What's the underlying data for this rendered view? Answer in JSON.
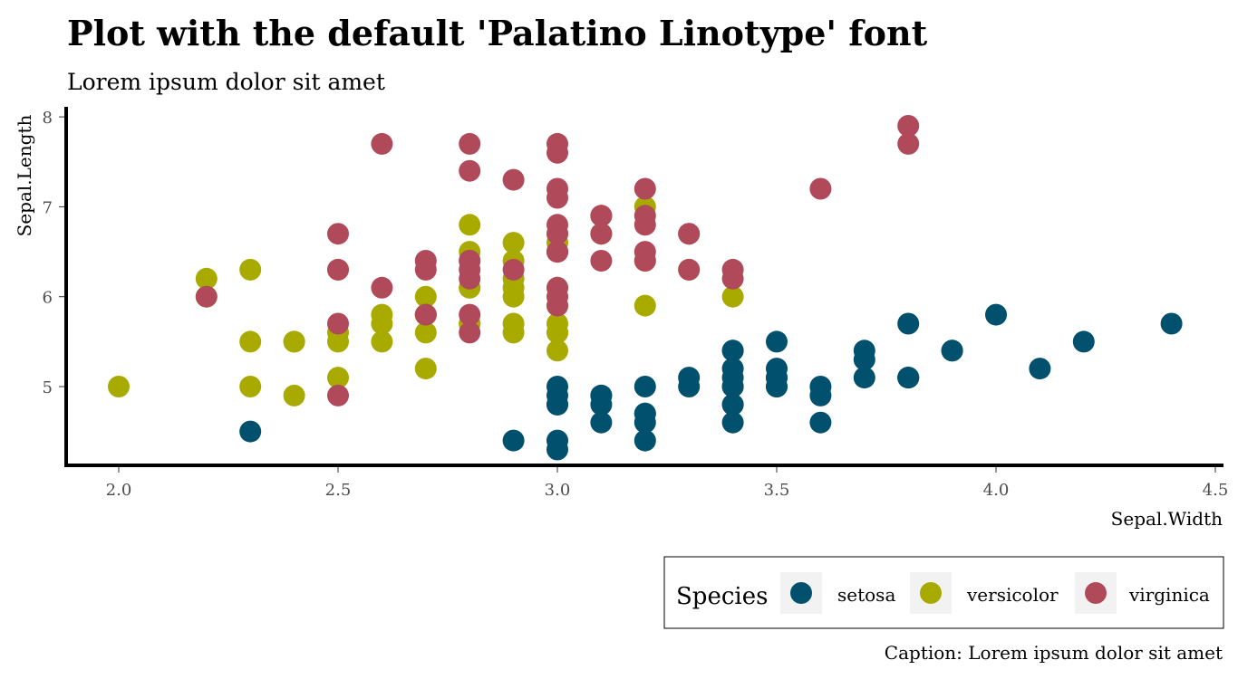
{
  "chart_data": {
    "type": "scatter",
    "title": "Plot with the default 'Palatino Linotype' font",
    "subtitle": "Lorem ipsum dolor sit amet",
    "caption": "Caption: Lorem ipsum dolor sit amet",
    "xlabel": "Sepal.Width",
    "ylabel": "Sepal.Length",
    "xlim": [
      1.88,
      4.5
    ],
    "ylim": [
      4.15,
      8.1
    ],
    "xticks": [
      2.0,
      2.5,
      3.0,
      3.5,
      4.0,
      4.5
    ],
    "xtick_labels": [
      "2.0",
      "2.5",
      "3.0",
      "3.5",
      "4.0",
      "4.5"
    ],
    "yticks": [
      5,
      6,
      7,
      8
    ],
    "ytick_labels": [
      "5",
      "6",
      "7",
      "8"
    ],
    "grid": false,
    "legend": {
      "title": "Species",
      "position": "bottom-right"
    },
    "series": [
      {
        "name": "setosa",
        "color": "#00506e",
        "points": [
          [
            3.5,
            5.1
          ],
          [
            3.0,
            4.9
          ],
          [
            3.2,
            4.7
          ],
          [
            3.1,
            4.6
          ],
          [
            3.6,
            5.0
          ],
          [
            3.9,
            5.4
          ],
          [
            3.4,
            4.6
          ],
          [
            3.4,
            5.0
          ],
          [
            2.9,
            4.4
          ],
          [
            3.1,
            4.9
          ],
          [
            3.7,
            5.4
          ],
          [
            3.4,
            4.8
          ],
          [
            3.0,
            4.8
          ],
          [
            3.0,
            4.3
          ],
          [
            4.0,
            5.8
          ],
          [
            4.4,
            5.7
          ],
          [
            3.9,
            5.4
          ],
          [
            3.5,
            5.1
          ],
          [
            3.8,
            5.7
          ],
          [
            3.8,
            5.1
          ],
          [
            3.4,
            5.4
          ],
          [
            3.7,
            5.1
          ],
          [
            3.6,
            4.6
          ],
          [
            3.3,
            5.1
          ],
          [
            3.4,
            4.8
          ],
          [
            3.0,
            5.0
          ],
          [
            3.4,
            5.0
          ],
          [
            3.5,
            5.2
          ],
          [
            3.4,
            5.2
          ],
          [
            3.2,
            4.7
          ],
          [
            3.1,
            4.8
          ],
          [
            3.4,
            5.4
          ],
          [
            4.1,
            5.2
          ],
          [
            4.2,
            5.5
          ],
          [
            3.1,
            4.9
          ],
          [
            3.2,
            5.0
          ],
          [
            3.5,
            5.5
          ],
          [
            3.6,
            4.9
          ],
          [
            3.0,
            4.4
          ],
          [
            3.4,
            5.1
          ],
          [
            3.5,
            5.0
          ],
          [
            2.3,
            4.5
          ],
          [
            3.2,
            4.4
          ],
          [
            3.5,
            5.0
          ],
          [
            3.8,
            5.1
          ],
          [
            3.0,
            4.8
          ],
          [
            3.8,
            5.1
          ],
          [
            3.2,
            4.6
          ],
          [
            3.7,
            5.3
          ],
          [
            3.3,
            5.0
          ]
        ]
      },
      {
        "name": "versicolor",
        "color": "#a8aa00",
        "points": [
          [
            3.2,
            7.0
          ],
          [
            3.2,
            6.4
          ],
          [
            3.1,
            6.9
          ],
          [
            2.3,
            5.5
          ],
          [
            2.8,
            6.5
          ],
          [
            2.8,
            5.7
          ],
          [
            3.3,
            6.3
          ],
          [
            2.4,
            4.9
          ],
          [
            2.9,
            6.6
          ],
          [
            2.7,
            5.2
          ],
          [
            2.0,
            5.0
          ],
          [
            3.0,
            5.9
          ],
          [
            2.2,
            6.0
          ],
          [
            2.9,
            6.1
          ],
          [
            2.9,
            5.6
          ],
          [
            3.1,
            6.7
          ],
          [
            3.0,
            5.6
          ],
          [
            2.7,
            5.8
          ],
          [
            2.2,
            6.2
          ],
          [
            2.5,
            5.6
          ],
          [
            3.2,
            5.9
          ],
          [
            2.8,
            6.1
          ],
          [
            2.5,
            6.3
          ],
          [
            2.8,
            6.1
          ],
          [
            2.9,
            6.4
          ],
          [
            3.0,
            6.6
          ],
          [
            2.8,
            6.8
          ],
          [
            3.0,
            6.7
          ],
          [
            2.9,
            6.0
          ],
          [
            2.6,
            5.7
          ],
          [
            2.4,
            5.5
          ],
          [
            2.4,
            5.5
          ],
          [
            2.7,
            5.8
          ],
          [
            2.7,
            6.0
          ],
          [
            3.0,
            5.4
          ],
          [
            3.4,
            6.0
          ],
          [
            3.1,
            6.7
          ],
          [
            2.3,
            6.3
          ],
          [
            3.0,
            5.6
          ],
          [
            2.5,
            5.5
          ],
          [
            2.6,
            5.5
          ],
          [
            3.0,
            6.1
          ],
          [
            2.6,
            5.8
          ],
          [
            2.3,
            5.0
          ],
          [
            2.7,
            5.6
          ],
          [
            3.0,
            5.7
          ],
          [
            2.9,
            5.7
          ],
          [
            2.9,
            6.2
          ],
          [
            2.5,
            5.1
          ],
          [
            2.8,
            5.7
          ]
        ]
      },
      {
        "name": "virginica",
        "color": "#b04a5a",
        "points": [
          [
            3.3,
            6.3
          ],
          [
            2.7,
            5.8
          ],
          [
            3.0,
            7.1
          ],
          [
            2.9,
            6.3
          ],
          [
            3.0,
            6.5
          ],
          [
            3.0,
            7.6
          ],
          [
            2.5,
            4.9
          ],
          [
            2.9,
            7.3
          ],
          [
            2.5,
            6.7
          ],
          [
            3.6,
            7.2
          ],
          [
            3.2,
            6.5
          ],
          [
            2.7,
            6.4
          ],
          [
            3.0,
            6.8
          ],
          [
            2.5,
            5.7
          ],
          [
            2.8,
            5.8
          ],
          [
            3.2,
            6.4
          ],
          [
            3.0,
            6.5
          ],
          [
            3.8,
            7.7
          ],
          [
            2.6,
            7.7
          ],
          [
            2.2,
            6.0
          ],
          [
            3.2,
            6.9
          ],
          [
            2.8,
            5.6
          ],
          [
            2.8,
            7.7
          ],
          [
            2.7,
            6.3
          ],
          [
            3.3,
            6.7
          ],
          [
            3.2,
            7.2
          ],
          [
            2.8,
            6.2
          ],
          [
            3.0,
            6.1
          ],
          [
            2.8,
            6.4
          ],
          [
            3.0,
            7.2
          ],
          [
            2.8,
            7.4
          ],
          [
            3.8,
            7.9
          ],
          [
            2.8,
            6.4
          ],
          [
            2.8,
            6.3
          ],
          [
            2.6,
            6.1
          ],
          [
            3.0,
            7.7
          ],
          [
            3.4,
            6.3
          ],
          [
            3.1,
            6.4
          ],
          [
            3.0,
            6.0
          ],
          [
            3.1,
            6.9
          ],
          [
            3.1,
            6.7
          ],
          [
            3.1,
            6.9
          ],
          [
            2.7,
            5.8
          ],
          [
            3.2,
            6.8
          ],
          [
            3.3,
            6.7
          ],
          [
            3.0,
            6.7
          ],
          [
            2.5,
            6.3
          ],
          [
            3.0,
            6.5
          ],
          [
            3.4,
            6.2
          ],
          [
            3.0,
            5.9
          ]
        ]
      }
    ]
  }
}
